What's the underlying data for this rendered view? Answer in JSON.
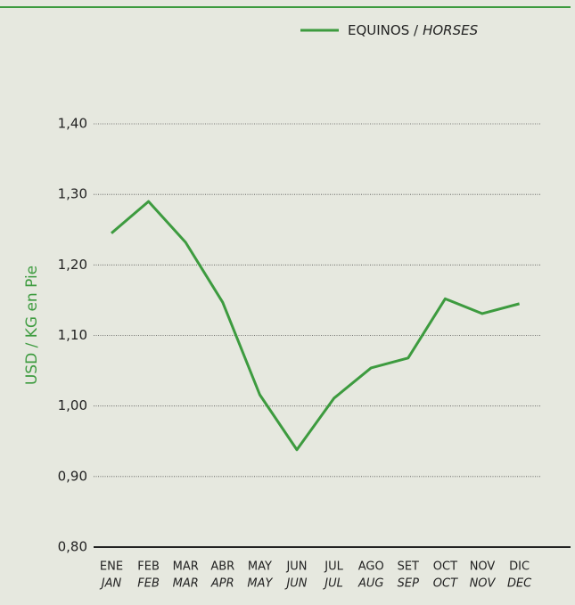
{
  "chart_data": {
    "type": "line",
    "legend": {
      "es": "EQUINOS /",
      "en": "HORSES"
    },
    "ylabel": "USD / KG en Pie",
    "categories": [
      "ENE",
      "FEB",
      "MAR",
      "ABR",
      "MAY",
      "JUN",
      "JUL",
      "AGO",
      "SET",
      "OCT",
      "NOV",
      "DIC"
    ],
    "categories_en": [
      "JAN",
      "FEB",
      "MAR",
      "APR",
      "MAY",
      "JUN",
      "JUL",
      "AUG",
      "SEP",
      "OCT",
      "NOV",
      "DEC"
    ],
    "series": [
      {
        "name": "EQUINOS / HORSES",
        "color": "#3d9b3f",
        "values": [
          1.245,
          1.29,
          1.232,
          1.147,
          1.016,
          0.938,
          1.011,
          1.054,
          1.068,
          1.152,
          1.131,
          1.145
        ]
      }
    ],
    "ylim": [
      0.8,
      1.4
    ],
    "yticks": [
      {
        "value": 0.8,
        "label": "0,80"
      },
      {
        "value": 0.9,
        "label": "0,90"
      },
      {
        "value": 1.0,
        "label": "1,00"
      },
      {
        "value": 1.1,
        "label": "1,10"
      },
      {
        "value": 1.2,
        "label": "1,20"
      },
      {
        "value": 1.3,
        "label": "1,30"
      },
      {
        "value": 1.4,
        "label": "1,40"
      }
    ],
    "grid": true
  }
}
